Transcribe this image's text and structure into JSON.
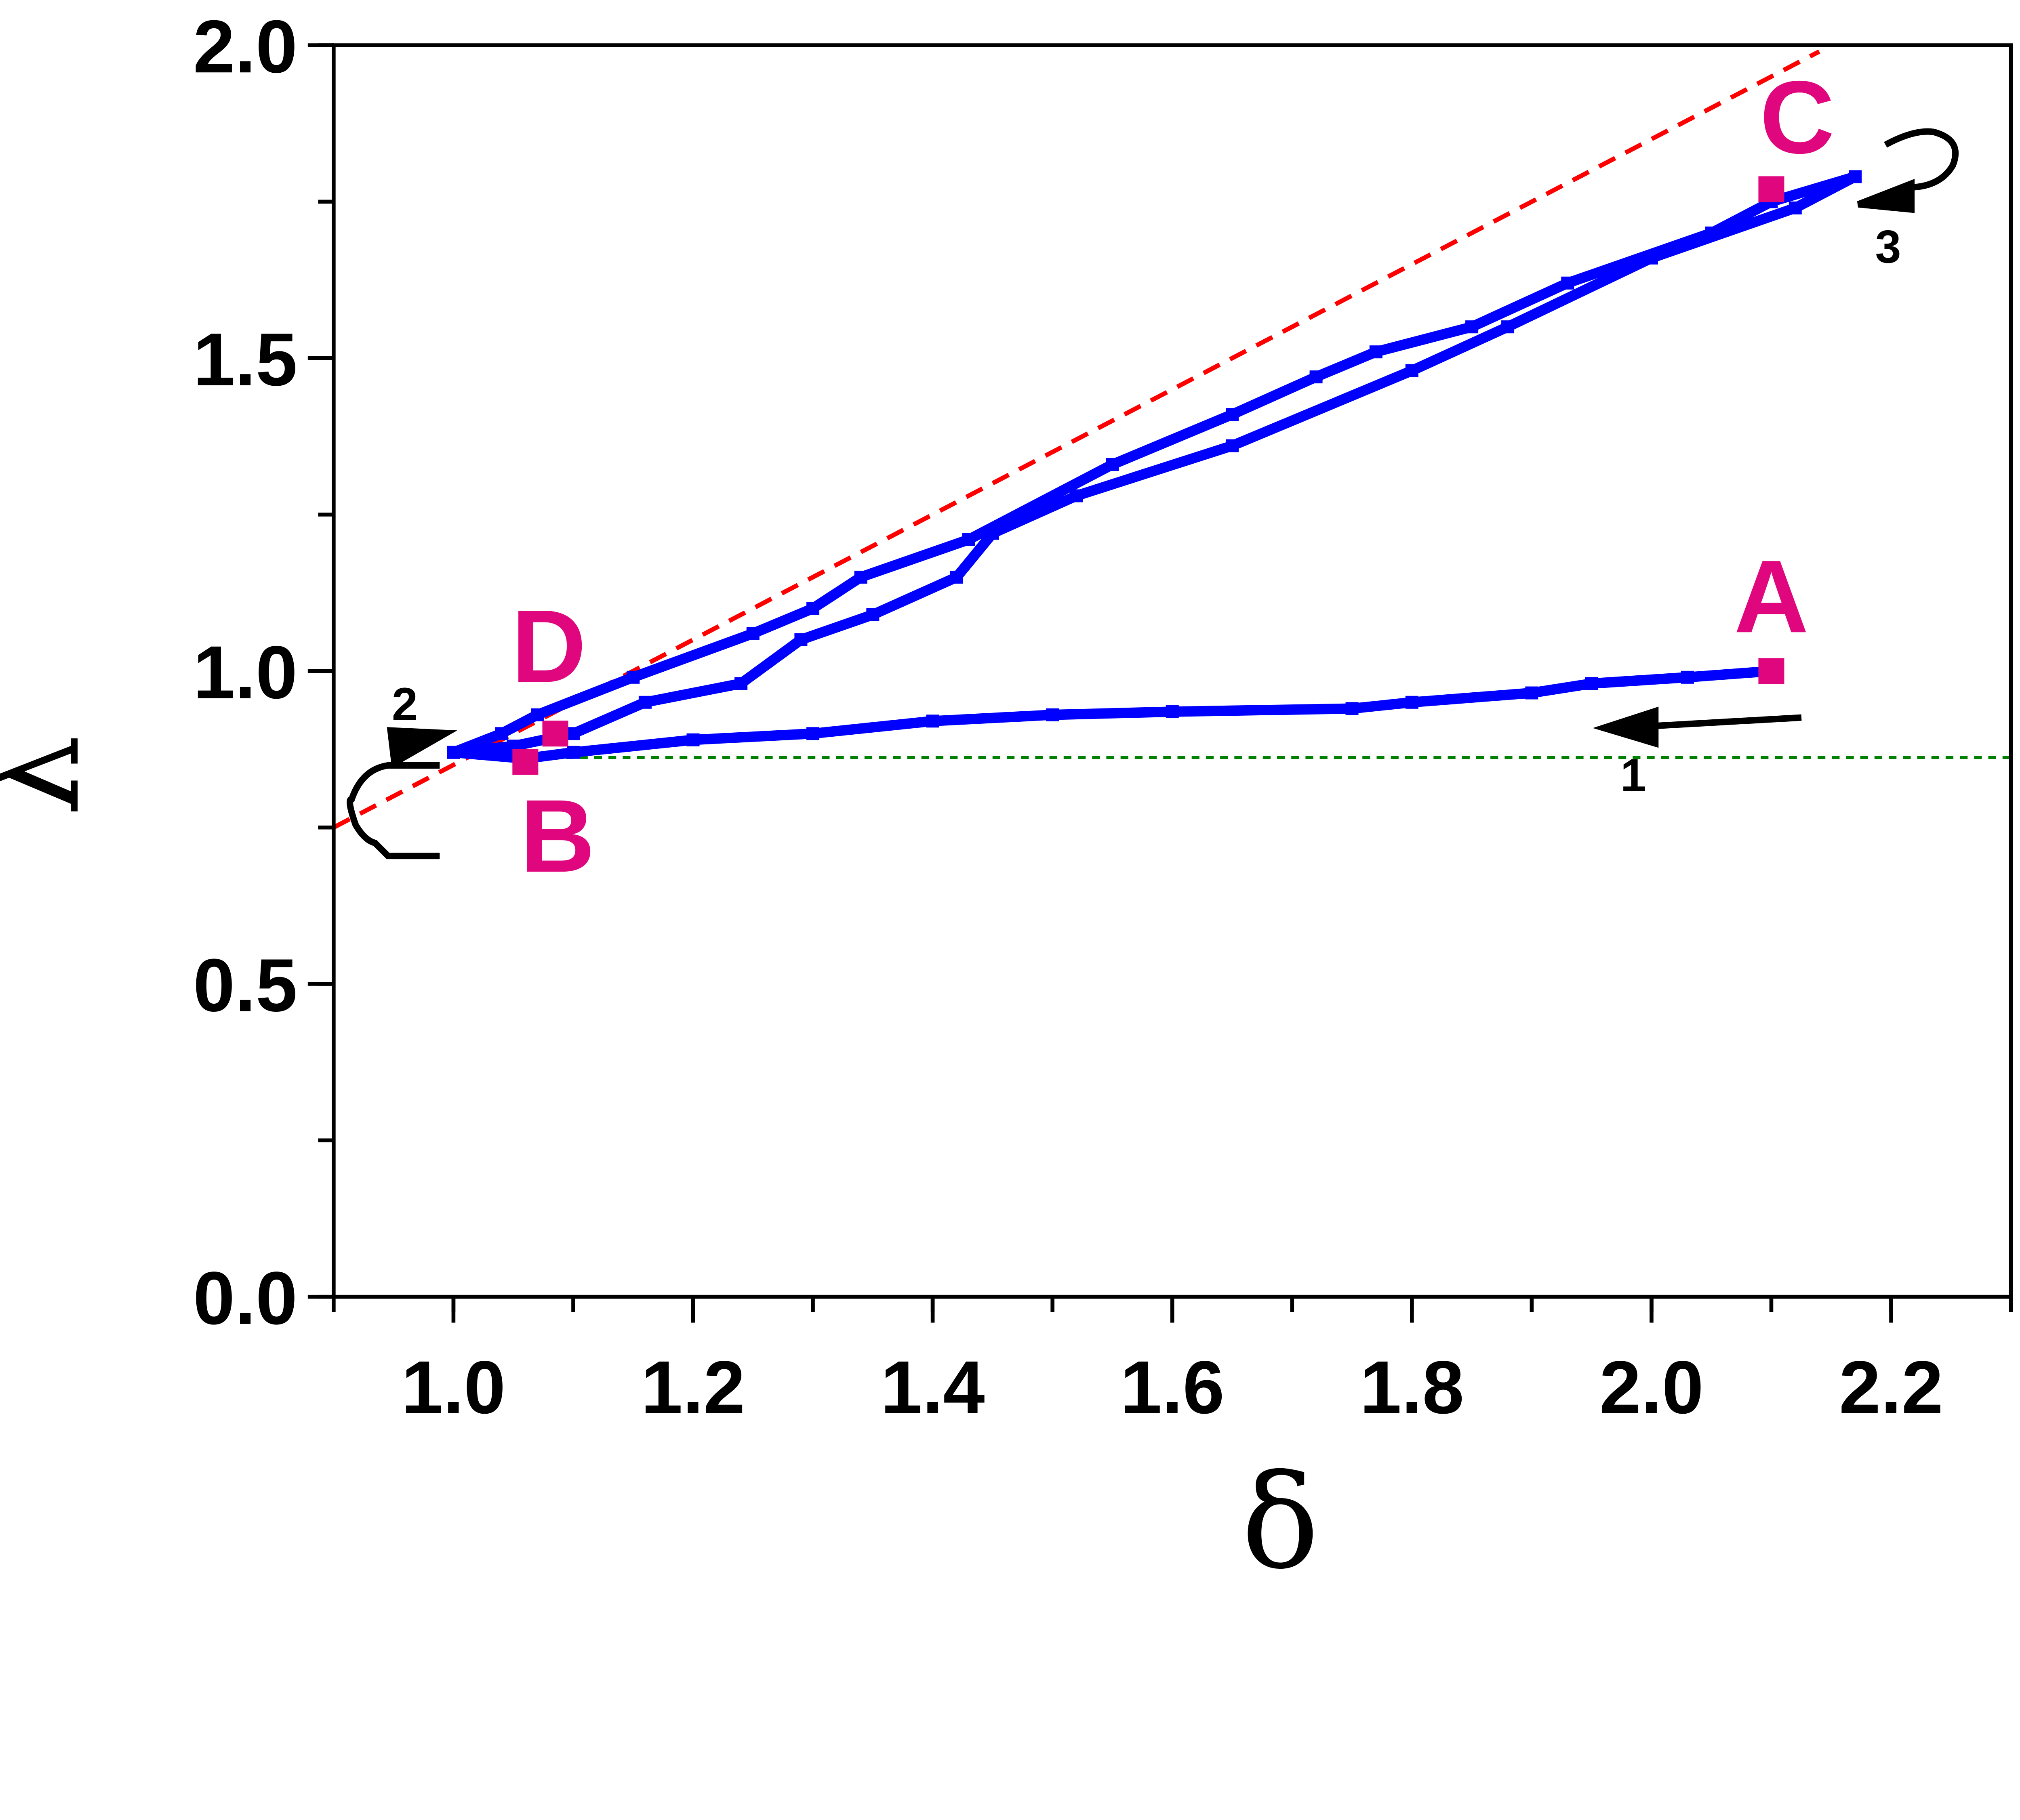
{
  "chart_data": {
    "type": "line",
    "xlabel": "δ",
    "ylabel": "λ",
    "xlim": [
      0.9,
      2.3
    ],
    "ylim": [
      0.0,
      2.0
    ],
    "grid": false,
    "x_ticks": [
      "1.0",
      "1.2",
      "1.4",
      "1.6",
      "1.8",
      "2.0",
      "2.2"
    ],
    "y_ticks": [
      "0.0",
      "0.5",
      "1.0",
      "1.5",
      "2.0"
    ],
    "series": [
      {
        "style": "thick blue line with square markers",
        "color": "#0000ff",
        "points": [
          [
            2.1,
            1.0
          ],
          [
            2.03,
            0.99
          ],
          [
            1.95,
            0.98
          ],
          [
            1.9,
            0.965
          ],
          [
            1.8,
            0.95
          ],
          [
            1.75,
            0.94
          ],
          [
            1.6,
            0.935
          ],
          [
            1.5,
            0.93
          ],
          [
            1.4,
            0.92
          ],
          [
            1.3,
            0.9
          ],
          [
            1.2,
            0.89
          ],
          [
            1.1,
            0.87
          ],
          [
            1.06,
            0.86
          ],
          [
            1.0,
            0.87
          ],
          [
            1.04,
            0.9
          ],
          [
            1.07,
            0.93
          ],
          [
            1.15,
            0.99
          ],
          [
            1.25,
            1.06
          ],
          [
            1.3,
            1.1
          ],
          [
            1.34,
            1.15
          ],
          [
            1.43,
            1.21
          ],
          [
            1.55,
            1.33
          ],
          [
            1.65,
            1.41
          ],
          [
            1.72,
            1.47
          ],
          [
            1.77,
            1.51
          ],
          [
            1.85,
            1.55
          ],
          [
            1.93,
            1.62
          ],
          [
            2.05,
            1.7
          ],
          [
            2.1,
            1.75
          ],
          [
            2.17,
            1.79
          ],
          [
            2.12,
            1.74
          ],
          [
            2.0,
            1.66
          ],
          [
            1.88,
            1.55
          ],
          [
            1.8,
            1.48
          ],
          [
            1.65,
            1.36
          ],
          [
            1.52,
            1.28
          ],
          [
            1.45,
            1.22
          ],
          [
            1.42,
            1.15
          ],
          [
            1.35,
            1.09
          ],
          [
            1.29,
            1.05
          ],
          [
            1.24,
            0.98
          ],
          [
            1.16,
            0.95
          ],
          [
            1.1,
            0.9
          ],
          [
            1.05,
            0.88
          ],
          [
            1.0,
            0.87
          ]
        ]
      },
      {
        "style": "red dashed line",
        "color": "#ff0000",
        "points": [
          [
            0.9,
            0.75
          ],
          [
            2.14,
            1.99
          ]
        ]
      },
      {
        "style": "green dotted line",
        "color": "#008000",
        "points": [
          [
            1.07,
            0.862
          ],
          [
            2.3,
            0.862
          ]
        ]
      }
    ],
    "marked_points": [
      {
        "label": "A",
        "x": 2.1,
        "y": 1.0
      },
      {
        "label": "B",
        "x": 1.06,
        "y": 0.855
      },
      {
        "label": "C",
        "x": 2.1,
        "y": 1.77
      },
      {
        "label": "D",
        "x": 1.085,
        "y": 0.9
      }
    ],
    "marker_color": "#e0067e",
    "annotations": [
      {
        "label": "1",
        "kind": "arrow pointing left"
      },
      {
        "label": "2",
        "kind": "looping arrow"
      },
      {
        "label": "3",
        "kind": "looping arrow"
      }
    ]
  }
}
